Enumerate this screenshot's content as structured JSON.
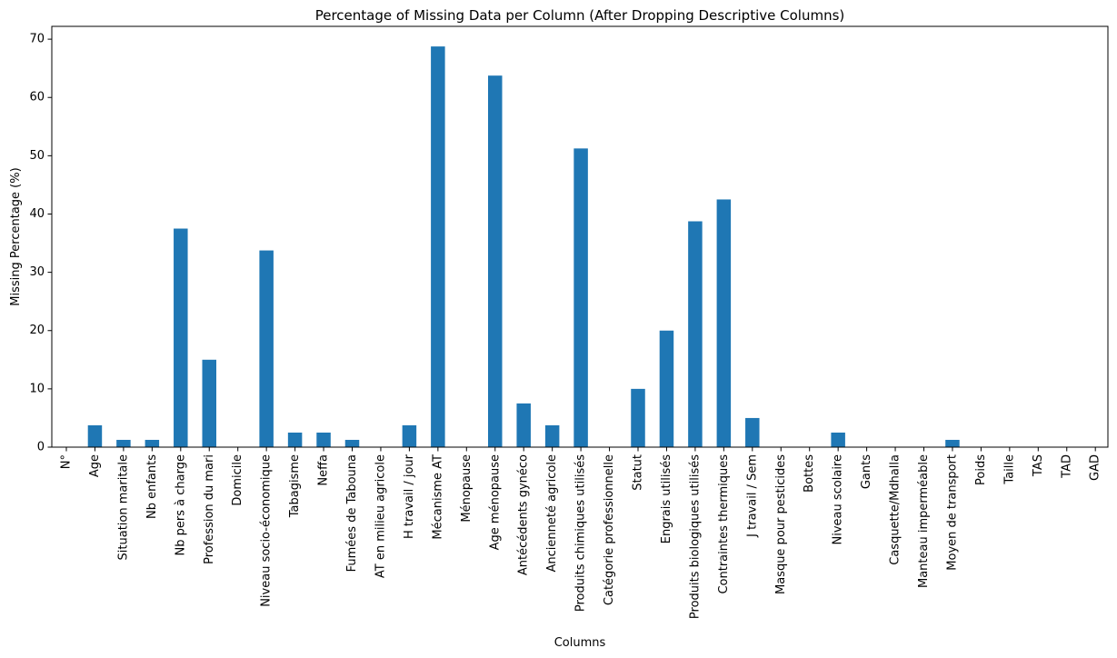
{
  "chart_data": {
    "type": "bar",
    "title": "Percentage of Missing Data per Column (After Dropping Descriptive Columns)",
    "xlabel": "Columns",
    "ylabel": "Missing Percentage (%)",
    "ylim": [
      0,
      72.2
    ],
    "yticks": [
      0,
      10,
      20,
      30,
      40,
      50,
      60,
      70
    ],
    "grid": false,
    "bar_color": "#1f77b4",
    "categories": [
      "N°",
      "Age",
      "Situation maritale",
      "Nb enfants",
      "Nb pers à charge",
      "Profession du mari",
      "Domicile",
      "Niveau socio-économique",
      "Tabagisme",
      "Neffa",
      "Fumées de Tabouna",
      "AT en milieu agricole",
      "H travail / jour",
      "Mécanisme AT",
      "Ménopause",
      "Age ménopause",
      "Antécédents gynéco",
      "Ancienneté agricole",
      "Produits chimiques utilisés",
      "Catégorie professionnelle",
      "Statut",
      "Engrais utilisés",
      "Produits biologiques utilisés",
      "Contraintes thermiques",
      "J travail / Sem",
      "Masque pour pesticides",
      "Bottes",
      "Niveau scolaire",
      "Gants",
      "Casquette/Mdhalla",
      "Manteau imperméable",
      "Moyen de transport",
      "Poids",
      "Taille",
      "TAS",
      "TAD",
      "GAD"
    ],
    "values": [
      0,
      3.75,
      1.25,
      1.25,
      37.5,
      15.0,
      0,
      33.75,
      2.5,
      2.5,
      1.25,
      0,
      3.75,
      68.75,
      0,
      63.75,
      7.5,
      3.75,
      51.25,
      0,
      10.0,
      20.0,
      38.75,
      42.5,
      5.0,
      0,
      0,
      2.5,
      0,
      0,
      0,
      1.25,
      0,
      0,
      0,
      0,
      0
    ]
  }
}
